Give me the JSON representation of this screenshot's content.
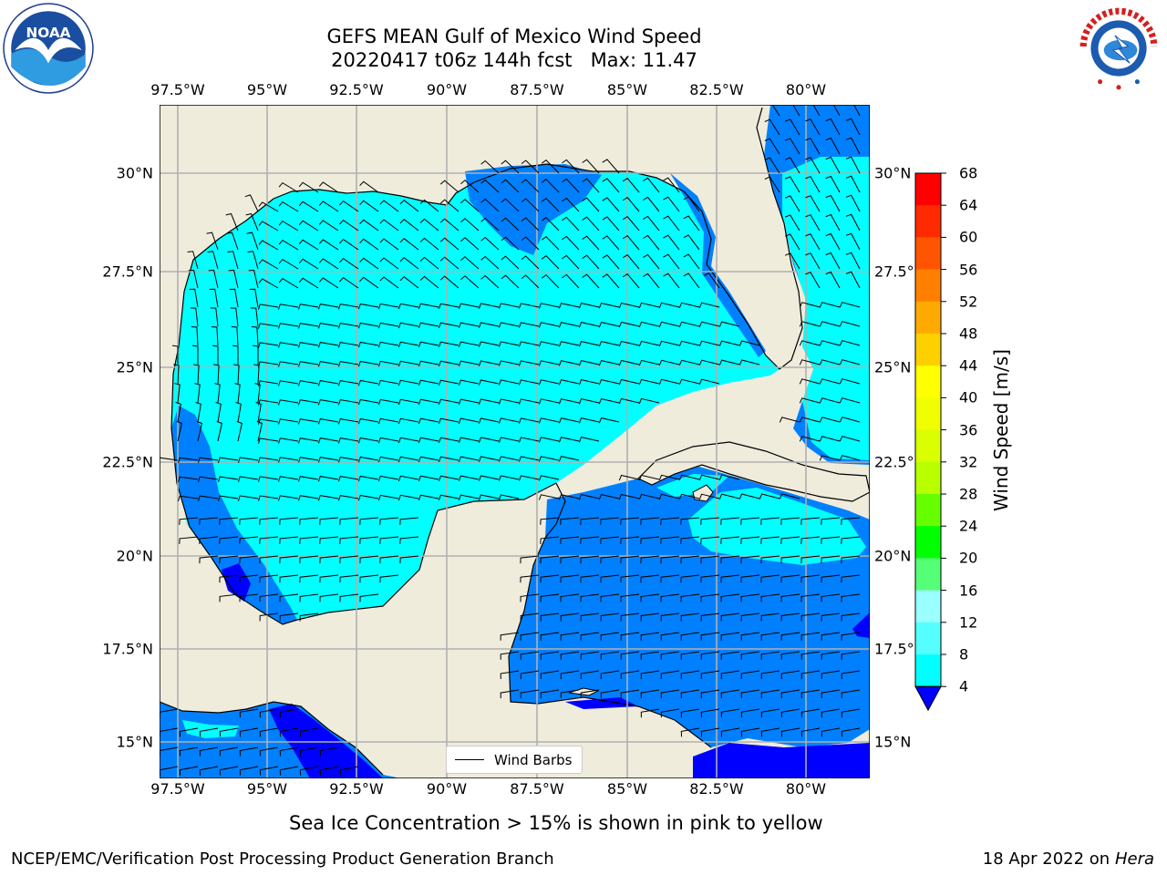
{
  "title_line1": "GEFS MEAN Gulf of Mexico Wind Speed",
  "title_line2": "20220417 t06z 144h fcst   Max: 11.47",
  "lon_labels": [
    "97.5°W",
    "95°W",
    "92.5°W",
    "90°W",
    "87.5°W",
    "85°W",
    "82.5°W",
    "80°W"
  ],
  "lat_labels": [
    "30°N",
    "27.5°N",
    "25°N",
    "22.5°N",
    "20°N",
    "17.5°N",
    "15°N"
  ],
  "colorbar": {
    "label": "Wind Speed [m/s]",
    "ticks": [
      "68",
      "64",
      "60",
      "56",
      "52",
      "48",
      "44",
      "40",
      "36",
      "32",
      "28",
      "24",
      "20",
      "16",
      "12",
      "8",
      "4"
    ],
    "colors": [
      "#ff0000",
      "#ff2a00",
      "#ff5500",
      "#ff8000",
      "#ffaa00",
      "#ffd000",
      "#ffff00",
      "#f0ff00",
      "#d9ff00",
      "#b8ff00",
      "#66ff00",
      "#00ff00",
      "#55ff77",
      "#99ffff",
      "#55ffff",
      "#00ffff",
      "#0080ff"
    ],
    "underflow_color": "#0000ff"
  },
  "legend": {
    "label": "Wind Barbs"
  },
  "caption": "Sea Ice Concentration > 15% is shown in pink to yellow",
  "footer_left": "NCEP/EMC/Verification Post Processing Product Generation Branch",
  "footer_right_date": "18 Apr 2022 on ",
  "footer_right_machine": "Hera",
  "logos": {
    "left": "noaa-logo",
    "right": "nws-logo",
    "left_text": "NOAA"
  },
  "map_colors": {
    "land": "#efecdc",
    "ocean_4_8": "#0080ff",
    "ocean_8_12": "#00ffff",
    "ocean_lt_4": "#0000ff",
    "grid": "#b0b0b0"
  }
}
